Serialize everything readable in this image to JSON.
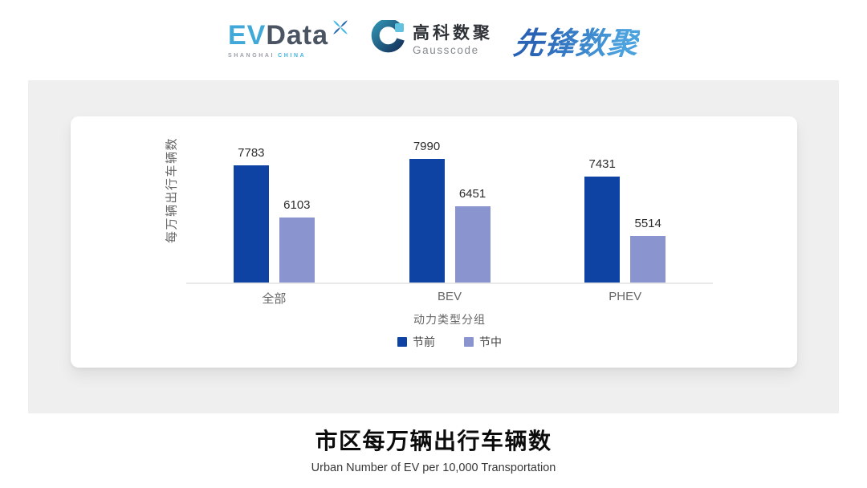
{
  "header": {
    "evdata_logo": {
      "ev": "EV",
      "data": "Data",
      "sub_left": "SHANGHAI",
      "sub_right": "CHINA"
    },
    "gausscode_logo": {
      "cn": "高科数聚",
      "en": "Gausscode"
    },
    "pioneer_logo": {
      "text": "先锋数聚"
    }
  },
  "colors": {
    "bar_pre_festival": "#0e43a4",
    "bar_mid_festival": "#8a95d0",
    "panel_bg": "#efefef",
    "axis_line": "#e8e8e8",
    "evdata_cyan": "#41a9d9",
    "evdata_dark": "#4a5462",
    "pioneer_blue": "#2f74c4"
  },
  "chart_data": {
    "type": "bar",
    "title": "市区每万辆出行车辆数",
    "subtitle": "Urban Number of EV per 10,000 Transportation",
    "xlabel": "动力类型分组",
    "ylabel": "每万辆出行车辆数",
    "categories": [
      "全部",
      "BEV",
      "PHEV"
    ],
    "series": [
      {
        "name": "节前",
        "color": "#0e43a4",
        "values": [
          7783,
          7990,
          7431
        ]
      },
      {
        "name": "节中",
        "color": "#8a95d0",
        "values": [
          6103,
          6451,
          5514
        ]
      }
    ],
    "ylim": [
      4000,
      9000
    ],
    "value_labels": true,
    "grid": false,
    "legend_position": "bottom"
  }
}
